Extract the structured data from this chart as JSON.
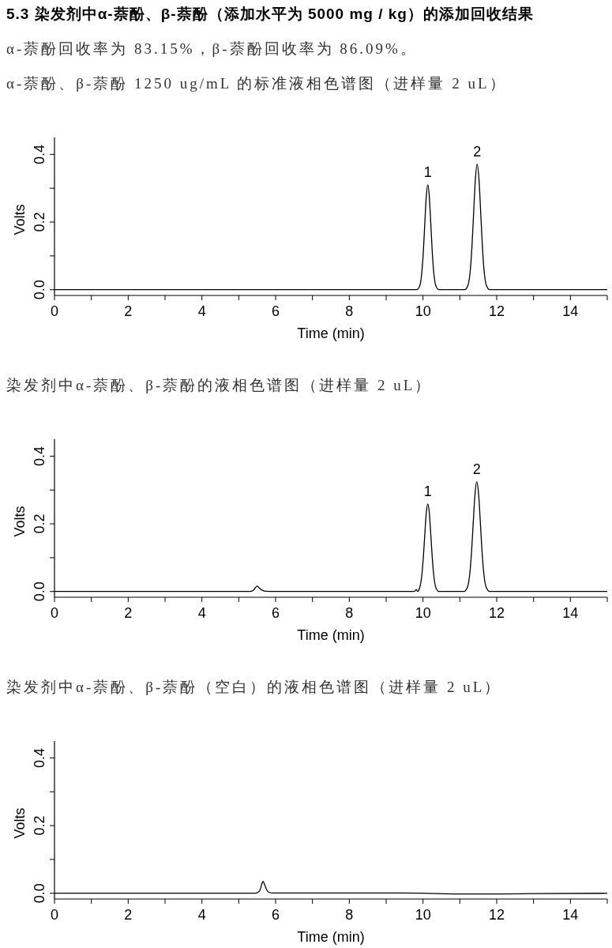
{
  "chart_data": [
    {
      "type": "line",
      "title": "α-萘酚、β-萘酚 1250 ug/mL 的标准液相色谱图（进样量 2 uL）",
      "xlabel": "Time (min)",
      "ylabel": "Volts",
      "annotations": [
        "5.3 染发剂中α-萘酚、β-萘酚（添加水平为 5000 mg / kg）的添加回收结果",
        "α-萘酚回收率为 83.15%，β-萘酚回收率为 86.09%。",
        {
          "text": "1",
          "x": 10.13,
          "y": 0.31
        },
        {
          "text": "2",
          "x": 11.47,
          "y": 0.371
        }
      ],
      "x": [
        0,
        2,
        4,
        6,
        8,
        9.5,
        9.83,
        9.91,
        9.97,
        10.01,
        10.05,
        10.09,
        10.13,
        10.17,
        10.21,
        10.25,
        10.29,
        10.35,
        10.43,
        10.8,
        11.13,
        11.22,
        11.29,
        11.33,
        11.37,
        11.42,
        11.47,
        11.52,
        11.57,
        11.61,
        11.65,
        11.72,
        11.81,
        12.5,
        14,
        15
      ],
      "values": [
        0,
        0,
        0,
        0,
        0,
        0,
        0,
        0.011,
        0.053,
        0.114,
        0.199,
        0.277,
        0.31,
        0.277,
        0.199,
        0.114,
        0.053,
        0.011,
        0,
        0,
        0,
        0.013,
        0.066,
        0.131,
        0.218,
        0.325,
        0.371,
        0.325,
        0.218,
        0.131,
        0.066,
        0.013,
        0,
        0,
        0,
        0
      ],
      "color": "#000000",
      "xlim": [
        0,
        15
      ],
      "xticks": [
        0,
        {
          "value": 1,
          "label": null
        },
        2,
        {
          "value": 3,
          "label": null
        },
        4,
        {
          "value": 5,
          "label": null
        },
        6,
        {
          "value": 7,
          "label": null
        },
        8,
        {
          "value": 9,
          "label": null
        },
        10,
        {
          "value": 11,
          "label": null
        },
        12,
        {
          "value": 13,
          "label": null
        },
        14,
        {
          "value": 15,
          "label": null
        }
      ],
      "ylim": [
        -0.017,
        0.45
      ],
      "yticks": [
        {
          "value": 0,
          "label": "0.0"
        },
        {
          "value": 0.1,
          "label": null
        },
        {
          "value": 0.2,
          "label": "0.2"
        },
        {
          "value": 0.3,
          "label": null
        },
        {
          "value": 0.4,
          "label": "0.4"
        }
      ]
    },
    {
      "type": "line",
      "title": "染发剂中α-萘酚、β-萘酚的液相色谱图（进样量 2 uL）",
      "xlabel": "Time (min)",
      "ylabel": "Volts",
      "annotations": [
        {
          "text": "1",
          "x": 10.13,
          "y": 0.259
        },
        {
          "text": "2",
          "x": 11.46,
          "y": 0.324
        }
      ],
      "x": [
        0,
        2,
        4,
        5.3,
        5.4,
        5.45,
        5.5,
        5.55,
        5.62,
        5.72,
        6,
        8,
        9.5,
        9.76,
        9.82,
        9.85,
        9.91,
        9.97,
        10.01,
        10.05,
        10.09,
        10.13,
        10.17,
        10.21,
        10.25,
        10.29,
        10.35,
        10.43,
        10.8,
        11.11,
        11.21,
        11.28,
        11.32,
        11.36,
        11.41,
        11.46,
        11.51,
        11.56,
        11.6,
        11.64,
        11.71,
        11.81,
        12.5,
        14,
        15
      ],
      "values": [
        0,
        0,
        0,
        0,
        0.004,
        0.011,
        0.016,
        0.011,
        0.005,
        0.001,
        0,
        0,
        0,
        0,
        0.006,
        0,
        0.011,
        0.05,
        0.102,
        0.171,
        0.234,
        0.259,
        0.234,
        0.171,
        0.102,
        0.05,
        0.011,
        0,
        0,
        0,
        0.014,
        0.064,
        0.122,
        0.197,
        0.286,
        0.324,
        0.286,
        0.197,
        0.122,
        0.064,
        0.014,
        0,
        0,
        0,
        0
      ],
      "color": "#000000",
      "xlim": [
        0,
        15
      ],
      "xticks": [
        0,
        {
          "value": 1,
          "label": null
        },
        2,
        {
          "value": 3,
          "label": null
        },
        4,
        {
          "value": 5,
          "label": null
        },
        6,
        {
          "value": 7,
          "label": null
        },
        8,
        {
          "value": 9,
          "label": null
        },
        10,
        {
          "value": 11,
          "label": null
        },
        12,
        {
          "value": 13,
          "label": null
        },
        14,
        {
          "value": 15,
          "label": null
        }
      ],
      "ylim": [
        -0.017,
        0.45
      ],
      "yticks": [
        {
          "value": 0,
          "label": "0.0"
        },
        {
          "value": 0.1,
          "label": null
        },
        {
          "value": 0.2,
          "label": "0.2"
        },
        {
          "value": 0.3,
          "label": null
        },
        {
          "value": 0.4,
          "label": "0.4"
        }
      ]
    },
    {
      "type": "line",
      "title": "染发剂中α-萘酚、β-萘酚（空白）的液相色谱图（进样量 2 uL）",
      "xlabel": "Time (min)",
      "ylabel": "Volts",
      "x": [
        0,
        2,
        4,
        5.45,
        5.55,
        5.6,
        5.63,
        5.66,
        5.7,
        5.75,
        5.8,
        5.9,
        6,
        8,
        9,
        10,
        11,
        12,
        13,
        15
      ],
      "values": [
        0,
        0,
        0,
        0,
        0.005,
        0.017,
        0.029,
        0.035,
        0.026,
        0.012,
        0.004,
        0.001,
        0.001,
        0.001,
        0.001,
        0,
        -0.002,
        -0.002,
        -0.001,
        0
      ],
      "color": "#000000",
      "xlim": [
        0,
        15
      ],
      "xticks": [
        0,
        {
          "value": 1,
          "label": null
        },
        2,
        {
          "value": 3,
          "label": null
        },
        4,
        {
          "value": 5,
          "label": null
        },
        6,
        {
          "value": 7,
          "label": null
        },
        8,
        {
          "value": 9,
          "label": null
        },
        10,
        {
          "value": 11,
          "label": null
        },
        12,
        {
          "value": 13,
          "label": null
        },
        14,
        {
          "value": 15,
          "label": null
        }
      ],
      "ylim": [
        -0.017,
        0.45
      ],
      "yticks": [
        {
          "value": 0,
          "label": "0.0"
        },
        {
          "value": 0.1,
          "label": null
        },
        {
          "value": 0.2,
          "label": "0.2"
        },
        {
          "value": 0.3,
          "label": null
        },
        {
          "value": 0.4,
          "label": "0.4"
        }
      ]
    }
  ]
}
